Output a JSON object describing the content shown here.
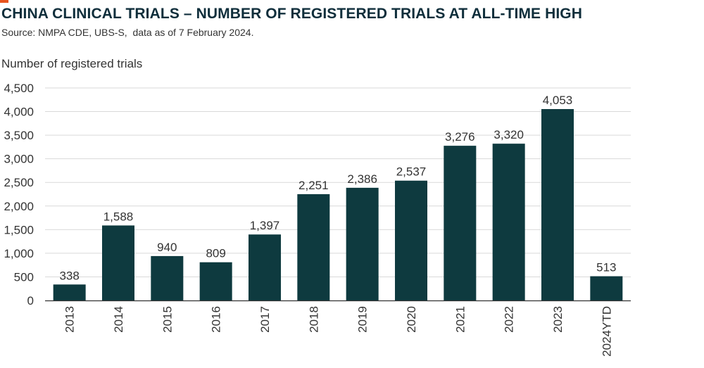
{
  "title": "CHINA CLINICAL TRIALS – NUMBER OF REGISTERED TRIALS AT ALL-TIME HIGH",
  "subtitle": "Source: NMPA CDE, UBS-S,  data as of 7 February 2024.",
  "colors": {
    "bar": "#0e3a3f",
    "accent": "#e8541e",
    "title": "#0f2e3b",
    "grid": "#d9d9d9"
  },
  "chart_data": {
    "type": "bar",
    "title": "CHINA CLINICAL TRIALS – NUMBER OF REGISTERED TRIALS AT ALL-TIME HIGH",
    "xlabel": "",
    "ylabel": "Number of registered trials",
    "categories": [
      "2013",
      "2014",
      "2015",
      "2016",
      "2017",
      "2018",
      "2019",
      "2020",
      "2021",
      "2022",
      "2023",
      "2024YTD"
    ],
    "values": [
      338,
      1588,
      940,
      809,
      1397,
      2251,
      2386,
      2537,
      3276,
      3320,
      4053,
      513
    ],
    "value_labels": [
      "338",
      "1,588",
      "940",
      "809",
      "1,397",
      "2,251",
      "2,386",
      "2,537",
      "3,276",
      "3,320",
      "4,053",
      "513"
    ],
    "ylim": [
      0,
      4500
    ],
    "yticks": [
      0,
      500,
      1000,
      1500,
      2000,
      2500,
      3000,
      3500,
      4000,
      4500
    ],
    "ytick_labels": [
      "0",
      "500",
      "1,000",
      "1,500",
      "2,000",
      "2,500",
      "3,000",
      "3,500",
      "4,000",
      "4,500"
    ],
    "grid": true,
    "legend": false
  }
}
